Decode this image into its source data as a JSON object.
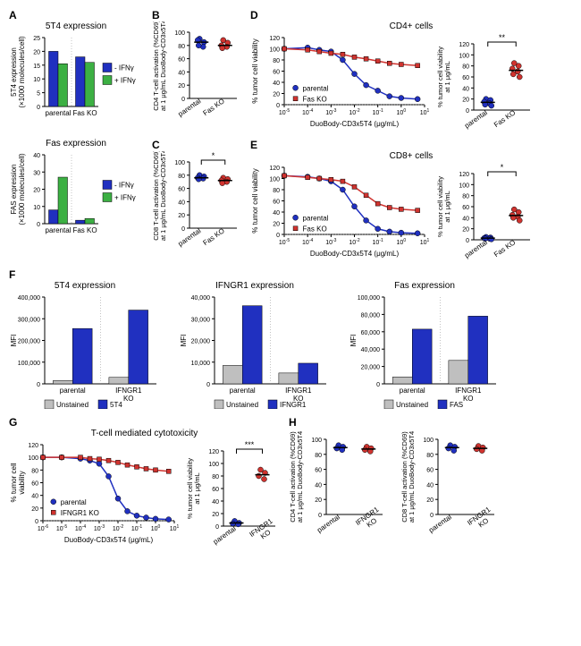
{
  "colors": {
    "blue": "#2030c0",
    "green": "#3cb043",
    "red": "#d0332f",
    "gray": "#bfbfbf",
    "darkblue": "#2030c0",
    "black": "#000000",
    "white": "#ffffff"
  },
  "A_top": {
    "title": "5T4 expression",
    "ylabel": "5T4 expression\n(×1000 molecules/cell)",
    "ylim": [
      0,
      25
    ],
    "ytick_step": 5,
    "categories": [
      "parental",
      "Fas KO"
    ],
    "series": [
      {
        "name": "- IFNγ",
        "color": "#2030c0",
        "values": [
          20,
          18
        ]
      },
      {
        "name": "+ IFNγ",
        "color": "#3cb043",
        "values": [
          15.5,
          16
        ]
      }
    ],
    "bar_width": 0.35
  },
  "A_bot": {
    "title": "Fas expression",
    "ylabel": "FAS expression\n(×1000 molecules/cell)",
    "ylim": [
      0,
      40
    ],
    "ytick_step": 10,
    "categories": [
      "parental",
      "Fas KO"
    ],
    "series": [
      {
        "name": "- IFNγ",
        "color": "#2030c0",
        "values": [
          8,
          2
        ]
      },
      {
        "name": "+ IFNγ",
        "color": "#3cb043",
        "values": [
          27,
          3
        ]
      }
    ],
    "bar_width": 0.35
  },
  "B": {
    "ylabel": "CD4 T-cell activation (%CD69)\nat 1 μg/mL DuoBody-CD3x5T4",
    "ylim": [
      0,
      100
    ],
    "ytick_step": 20,
    "categories": [
      "parental",
      "Fas KO"
    ],
    "points": {
      "parental": [
        90,
        85,
        88,
        78,
        80
      ],
      "Fas KO": [
        88,
        84,
        80,
        78,
        76
      ]
    },
    "point_colors": {
      "parental": "#2030c0",
      "Fas KO": "#d0332f"
    },
    "medians": {
      "parental": 85,
      "Fas KO": 80
    },
    "sig": null
  },
  "C": {
    "ylabel": "CD8 T-cell activation (%CD69)\nat 1 μg/mL DuoBody-CD3x5T4",
    "ylim": [
      0,
      100
    ],
    "ytick_step": 20,
    "categories": [
      "parental",
      "Fas KO"
    ],
    "points": {
      "parental": [
        80,
        78,
        76,
        75,
        74
      ],
      "Fas KO": [
        76,
        74,
        72,
        70,
        68
      ]
    },
    "point_colors": {
      "parental": "#2030c0",
      "Fas KO": "#d0332f"
    },
    "medians": {
      "parental": 76,
      "Fas KO": 72
    },
    "sig": "*"
  },
  "D": {
    "title": "CD4+ cells",
    "ylabel": "% tumor cell viability",
    "xlabel": "DuoBody-CD3x5T4 (μg/mL)",
    "xlog": [
      -5,
      1
    ],
    "ylim": [
      0,
      120
    ],
    "ytick_step": 20,
    "series": [
      {
        "name": "parental",
        "color": "#2030c0",
        "points": [
          [
            -5,
            100
          ],
          [
            -4,
            102
          ],
          [
            -3.5,
            98
          ],
          [
            -3,
            95
          ],
          [
            -2.5,
            80
          ],
          [
            -2,
            55
          ],
          [
            -1.5,
            35
          ],
          [
            -1,
            25
          ],
          [
            -0.5,
            15
          ],
          [
            0,
            12
          ],
          [
            0.7,
            10
          ]
        ]
      },
      {
        "name": "Fas KO",
        "color": "#d0332f",
        "points": [
          [
            -5,
            100
          ],
          [
            -4,
            98
          ],
          [
            -3.5,
            95
          ],
          [
            -3,
            92
          ],
          [
            -2.5,
            90
          ],
          [
            -2,
            85
          ],
          [
            -1.5,
            82
          ],
          [
            -1,
            78
          ],
          [
            -0.5,
            74
          ],
          [
            0,
            72
          ],
          [
            0.7,
            70
          ]
        ]
      }
    ],
    "scatter_right": {
      "ylabel": "% tumor cell viability\nat 1 μg/mL",
      "ylim": [
        0,
        120
      ],
      "ytick_step": 20,
      "categories": [
        "parental",
        "Fas KO"
      ],
      "points": {
        "parental": [
          20,
          18,
          15,
          12,
          10,
          8
        ],
        "Fas KO": [
          85,
          80,
          75,
          70,
          65,
          60
        ]
      },
      "point_colors": {
        "parental": "#2030c0",
        "Fas KO": "#d0332f"
      },
      "medians": {
        "parental": 14,
        "Fas KO": 72
      },
      "sig": "**"
    }
  },
  "E": {
    "title": "CD8+ cells",
    "ylabel": "% tumor cell viability",
    "xlabel": "DuoBody-CD3x5T4 (μg/mL)",
    "xlog": [
      -5,
      1
    ],
    "ylim": [
      0,
      120
    ],
    "ytick_step": 20,
    "series": [
      {
        "name": "parental",
        "color": "#2030c0",
        "points": [
          [
            -5,
            105
          ],
          [
            -4,
            103
          ],
          [
            -3.5,
            100
          ],
          [
            -3,
            95
          ],
          [
            -2.5,
            80
          ],
          [
            -2,
            50
          ],
          [
            -1.5,
            25
          ],
          [
            -1,
            10
          ],
          [
            -0.5,
            5
          ],
          [
            0,
            3
          ],
          [
            0.7,
            2
          ]
        ]
      },
      {
        "name": "Fas KO",
        "color": "#d0332f",
        "points": [
          [
            -5,
            105
          ],
          [
            -4,
            102
          ],
          [
            -3.5,
            100
          ],
          [
            -3,
            98
          ],
          [
            -2.5,
            95
          ],
          [
            -2,
            85
          ],
          [
            -1.5,
            70
          ],
          [
            -1,
            55
          ],
          [
            -0.5,
            48
          ],
          [
            0,
            45
          ],
          [
            0.7,
            43
          ]
        ]
      }
    ],
    "scatter_right": {
      "ylabel": "% tumor cell viability\nat 1 μg/mL",
      "ylim": [
        0,
        120
      ],
      "ytick_step": 20,
      "categories": [
        "parental",
        "Fas KO"
      ],
      "points": {
        "parental": [
          5,
          4,
          3,
          2,
          2,
          1
        ],
        "Fas KO": [
          55,
          50,
          45,
          42,
          40,
          35
        ]
      },
      "point_colors": {
        "parental": "#2030c0",
        "Fas KO": "#d0332f"
      },
      "medians": {
        "parental": 3,
        "Fas KO": 44
      },
      "sig": "*"
    }
  },
  "F1": {
    "title": "5T4 expression",
    "ylabel": "MFI",
    "ylim": [
      0,
      400000
    ],
    "ytick_step": 100000,
    "categories": [
      "parental",
      "IFNGR1\nKO"
    ],
    "series": [
      {
        "name": "Unstained",
        "color": "#bfbfbf",
        "values": [
          15000,
          30000
        ]
      },
      {
        "name": "5T4",
        "color": "#2030c0",
        "values": [
          255000,
          340000
        ]
      }
    ],
    "bar_width": 0.35
  },
  "F2": {
    "title": "IFNGR1 expression",
    "ylabel": "MFI",
    "ylim": [
      0,
      40000
    ],
    "ytick_step": 10000,
    "categories": [
      "parental",
      "IFNGR1\nKO"
    ],
    "series": [
      {
        "name": "Unstained",
        "color": "#bfbfbf",
        "values": [
          8500,
          5000
        ]
      },
      {
        "name": "IFNGR1",
        "color": "#2030c0",
        "values": [
          36000,
          9500
        ]
      }
    ],
    "bar_width": 0.35
  },
  "F3": {
    "title": "Fas expression",
    "ylabel": "MFI",
    "ylim": [
      0,
      100000
    ],
    "ytick_step": 20000,
    "categories": [
      "parental",
      "IFNGR1\nKO"
    ],
    "series": [
      {
        "name": "Unstained",
        "color": "#bfbfbf",
        "values": [
          8000,
          27000
        ]
      },
      {
        "name": "FAS",
        "color": "#2030c0",
        "values": [
          63000,
          78000
        ]
      }
    ],
    "bar_width": 0.35
  },
  "G": {
    "title": "T-cell mediated cytotoxicity",
    "ylabel": "% tumor cell\nviability",
    "xlabel": "DuoBody-CD3x5T4 (μg/mL)",
    "xlog": [
      -6,
      1
    ],
    "ylim": [
      0,
      120
    ],
    "ytick_step": 20,
    "series": [
      {
        "name": "parental",
        "color": "#2030c0",
        "points": [
          [
            -6,
            100
          ],
          [
            -5,
            100
          ],
          [
            -4,
            98
          ],
          [
            -3.5,
            95
          ],
          [
            -3,
            90
          ],
          [
            -2.5,
            70
          ],
          [
            -2,
            35
          ],
          [
            -1.5,
            15
          ],
          [
            -1,
            8
          ],
          [
            -0.5,
            5
          ],
          [
            0,
            3
          ],
          [
            0.7,
            2
          ]
        ]
      },
      {
        "name": "IFNGR1 KO",
        "color": "#d0332f",
        "points": [
          [
            -6,
            100
          ],
          [
            -5,
            100
          ],
          [
            -4,
            100
          ],
          [
            -3.5,
            98
          ],
          [
            -3,
            97
          ],
          [
            -2.5,
            95
          ],
          [
            -2,
            92
          ],
          [
            -1.5,
            88
          ],
          [
            -1,
            85
          ],
          [
            -0.5,
            82
          ],
          [
            0,
            80
          ],
          [
            0.7,
            78
          ]
        ]
      }
    ],
    "scatter_right": {
      "ylabel": "% tumor cell viability\nat 1 μg/mL",
      "ylim": [
        0,
        120
      ],
      "ytick_step": 20,
      "categories": [
        "parental",
        "IFNGR1\nKO"
      ],
      "points": {
        "parental": [
          8,
          5,
          4,
          3
        ],
        "IFNGR1\nKO": [
          90,
          85,
          80,
          75
        ]
      },
      "point_colors": {
        "parental": "#2030c0",
        "IFNGR1\nKO": "#d0332f"
      },
      "medians": {
        "parental": 5,
        "IFNGR1\nKO": 82
      },
      "sig": "***"
    }
  },
  "H1": {
    "ylabel": "CD4 T-cell activation (%CD69)\nat 1 μg/mL DuoBody-CD3x5T4",
    "ylim": [
      0,
      100
    ],
    "ytick_step": 20,
    "categories": [
      "parental",
      "IFNGR1\nKO"
    ],
    "points": {
      "parental": [
        92,
        90,
        88,
        86
      ],
      "IFNGR1\nKO": [
        90,
        88,
        86,
        84
      ]
    },
    "point_colors": {
      "parental": "#2030c0",
      "IFNGR1\nKO": "#d0332f"
    },
    "medians": {
      "parental": 89,
      "IFNGR1\nKO": 87
    },
    "sig": null
  },
  "H2": {
    "ylabel": "CD8 T-cell activation (%CD69)\nat 1 μg/mL DuoBody-CD3x5T4",
    "ylim": [
      0,
      100
    ],
    "ytick_step": 20,
    "categories": [
      "parental",
      "IFNGR1\nKO"
    ],
    "points": {
      "parental": [
        92,
        90,
        88,
        85
      ],
      "IFNGR1\nKO": [
        91,
        89,
        87,
        85
      ]
    },
    "point_colors": {
      "parental": "#2030c0",
      "IFNGR1\nKO": "#d0332f"
    },
    "medians": {
      "parental": 89,
      "IFNGR1\nKO": 88
    },
    "sig": null
  },
  "labels": {
    "A": "A",
    "B": "B",
    "C": "C",
    "D": "D",
    "E": "E",
    "F": "F",
    "G": "G",
    "H": "H"
  }
}
